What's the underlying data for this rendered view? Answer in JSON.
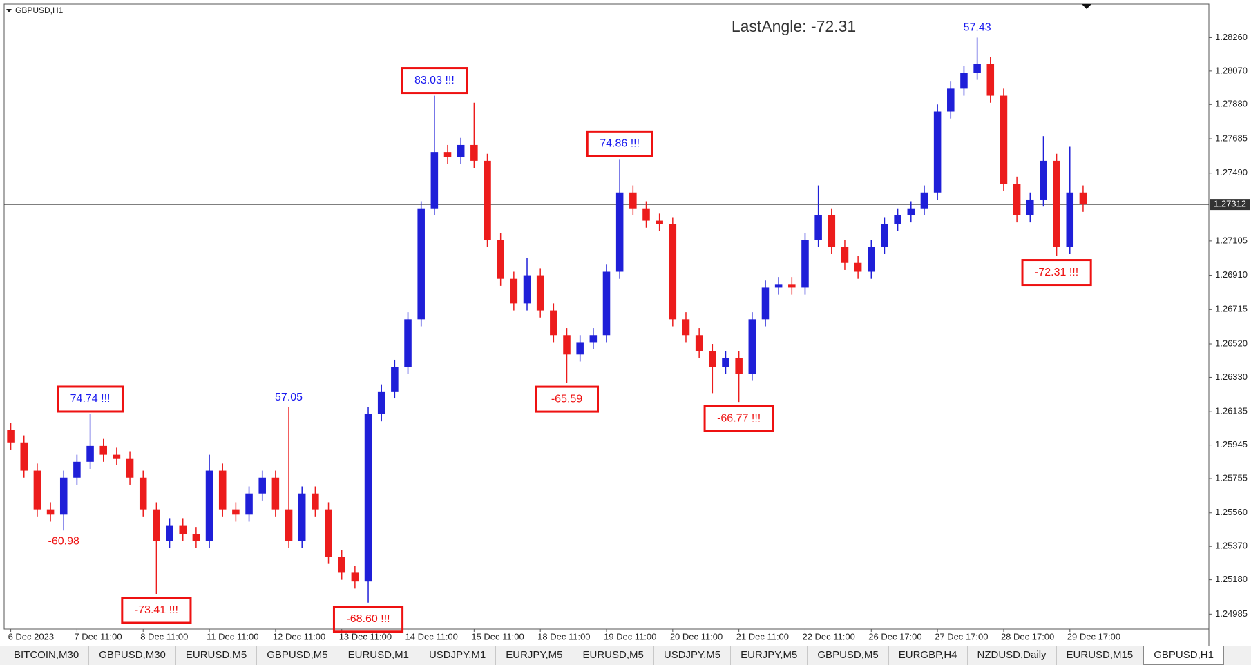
{
  "window": {
    "tabs": [
      "BITCOIN,M30",
      "GBPUSD,M30",
      "EURUSD,M5",
      "GBPUSD,M5",
      "EURUSD,M1",
      "USDJPY,M1",
      "EURJPY,M5",
      "EURUSD,M5",
      "USDJPY,M5",
      "EURJPY,M5",
      "GBPUSD,M5",
      "EURGBP,H4",
      "NZDUSD,Daily",
      "EURUSD,M15",
      "GBPUSD,H1"
    ],
    "active_tab": 14
  },
  "chart_data": {
    "type": "candlestick",
    "title": "GBPUSD,H1",
    "status_text": "LastAngle: -72.31",
    "up_color": "#1f1fd8",
    "down_color": "#ec1c1c",
    "grid": false,
    "categories": [
      "6 Dec 2023",
      null,
      null,
      null,
      null,
      "7 Dec 11:00",
      null,
      null,
      null,
      null,
      "8 Dec 11:00",
      null,
      null,
      null,
      null,
      "11 Dec 11:00",
      null,
      null,
      null,
      null,
      "12 Dec 11:00",
      null,
      null,
      null,
      null,
      "13 Dec 11:00",
      null,
      null,
      null,
      null,
      "14 Dec 11:00",
      null,
      null,
      null,
      null,
      "15 Dec 11:00",
      null,
      null,
      null,
      null,
      "18 Dec 11:00",
      null,
      null,
      null,
      null,
      "19 Dec 11:00",
      null,
      null,
      null,
      null,
      "20 Dec 11:00",
      null,
      null,
      null,
      null,
      "21 Dec 11:00",
      null,
      null,
      null,
      null,
      "22 Dec 11:00",
      null,
      null,
      null,
      null,
      "26 Dec 17:00",
      null,
      null,
      null,
      null,
      "27 Dec 17:00",
      null,
      null,
      null,
      null,
      "28 Dec 17:00",
      null,
      null,
      null,
      null,
      "29 Dec 17:00",
      null
    ],
    "open": [
      1.2603,
      1.2596,
      1.258,
      1.2558,
      1.2555,
      1.2576,
      1.2585,
      1.2594,
      1.2589,
      1.2587,
      1.2576,
      1.2558,
      1.254,
      1.2549,
      1.2544,
      1.254,
      1.258,
      1.2558,
      1.2555,
      1.2567,
      1.2576,
      1.2558,
      1.254,
      1.2567,
      1.2558,
      1.2531,
      1.2522,
      1.2517,
      1.2612,
      1.2625,
      1.2639,
      1.2666,
      1.2729,
      1.2761,
      1.2758,
      1.2765,
      1.2756,
      1.2711,
      1.2689,
      1.2675,
      1.2691,
      1.2671,
      1.2657,
      1.2646,
      1.2653,
      1.2657,
      1.2693,
      1.2738,
      1.2729,
      1.2722,
      1.272,
      1.2666,
      1.2657,
      1.2648,
      1.2639,
      1.2644,
      1.2635,
      1.2666,
      1.2684,
      1.2686,
      1.2684,
      1.2711,
      1.2725,
      1.2707,
      1.2698,
      1.2693,
      1.2707,
      1.272,
      1.2725,
      1.2729,
      1.2738,
      1.2784,
      1.2797,
      1.2806,
      1.2811,
      1.2793,
      1.2743,
      1.2725,
      1.2734,
      1.2756,
      1.2707,
      1.2738
    ],
    "high": [
      1.2607,
      1.26,
      1.2584,
      1.2562,
      1.258,
      1.2589,
      1.2612,
      1.2598,
      1.2593,
      1.2591,
      1.258,
      1.2562,
      1.2553,
      1.2553,
      1.2548,
      1.2589,
      1.2584,
      1.2562,
      1.2571,
      1.258,
      1.258,
      1.2616,
      1.2571,
      1.2571,
      1.2562,
      1.2535,
      1.2526,
      1.2616,
      1.2629,
      1.2643,
      1.267,
      1.2733,
      1.2793,
      1.2765,
      1.2769,
      1.2789,
      1.276,
      1.2715,
      1.2693,
      1.2701,
      1.2695,
      1.2675,
      1.2661,
      1.2657,
      1.2661,
      1.2697,
      1.2757,
      1.2742,
      1.2733,
      1.2726,
      1.2724,
      1.267,
      1.2661,
      1.2652,
      1.2648,
      1.2648,
      1.267,
      1.2688,
      1.269,
      1.269,
      1.2715,
      1.2742,
      1.2729,
      1.2711,
      1.2702,
      1.2711,
      1.2724,
      1.2729,
      1.2733,
      1.2742,
      1.2788,
      1.2801,
      1.281,
      1.2826,
      1.2815,
      1.2797,
      1.2747,
      1.2738,
      1.277,
      1.276,
      1.2764,
      1.2742
    ],
    "low": [
      1.2592,
      1.2576,
      1.2554,
      1.2551,
      1.2546,
      1.2572,
      1.2581,
      1.2585,
      1.2583,
      1.2572,
      1.2554,
      1.251,
      1.2536,
      1.254,
      1.2536,
      1.2536,
      1.2554,
      1.2551,
      1.2551,
      1.2563,
      1.2554,
      1.2536,
      1.2536,
      1.2554,
      1.2527,
      1.2518,
      1.2513,
      1.2505,
      1.2608,
      1.2621,
      1.2635,
      1.2662,
      1.2725,
      1.2754,
      1.2754,
      1.2752,
      1.2707,
      1.2685,
      1.2671,
      1.2671,
      1.2667,
      1.2653,
      1.263,
      1.2642,
      1.2649,
      1.2653,
      1.2689,
      1.2725,
      1.2718,
      1.2716,
      1.2662,
      1.2653,
      1.2644,
      1.2624,
      1.2635,
      1.2619,
      1.2631,
      1.2662,
      1.268,
      1.268,
      1.268,
      1.2707,
      1.2703,
      1.2694,
      1.2689,
      1.2689,
      1.2703,
      1.2716,
      1.2721,
      1.2725,
      1.2734,
      1.278,
      1.2793,
      1.2802,
      1.2789,
      1.2739,
      1.2721,
      1.2721,
      1.273,
      1.2702,
      1.2703,
      1.2727
    ],
    "close": [
      1.2596,
      1.258,
      1.2558,
      1.2555,
      1.2576,
      1.2585,
      1.2594,
      1.2589,
      1.2587,
      1.2576,
      1.2558,
      1.254,
      1.2549,
      1.2544,
      1.254,
      1.258,
      1.2558,
      1.2555,
      1.2567,
      1.2576,
      1.2558,
      1.254,
      1.2567,
      1.2558,
      1.2531,
      1.2522,
      1.2517,
      1.2612,
      1.2625,
      1.2639,
      1.2666,
      1.2729,
      1.2761,
      1.2758,
      1.2765,
      1.2756,
      1.2711,
      1.2689,
      1.2675,
      1.2691,
      1.2671,
      1.2657,
      1.2646,
      1.2653,
      1.2657,
      1.2693,
      1.2738,
      1.2729,
      1.2722,
      1.272,
      1.2666,
      1.2657,
      1.2648,
      1.2639,
      1.2644,
      1.2635,
      1.2666,
      1.2684,
      1.2686,
      1.2684,
      1.2711,
      1.2725,
      1.2707,
      1.2698,
      1.2693,
      1.2707,
      1.272,
      1.2725,
      1.2729,
      1.2738,
      1.2784,
      1.2797,
      1.2806,
      1.2811,
      1.2793,
      1.2743,
      1.2725,
      1.2734,
      1.2756,
      1.2707,
      1.2738,
      1.27312
    ],
    "last_price": 1.27312,
    "ylim": [
      1.249,
      1.2845
    ],
    "yticks": [
      {
        "value": 1.2826,
        "label": "1.28260"
      },
      {
        "value": 1.2807,
        "label": "1.28070"
      },
      {
        "value": 1.2788,
        "label": "1.27880"
      },
      1.27685,
      {
        "value": 1.2749,
        "label": "1.27490"
      },
      1.27105,
      {
        "value": 1.2691,
        "label": "1.26910"
      },
      1.26715,
      {
        "value": 1.2652,
        "label": "1.26520"
      },
      {
        "value": 1.2633,
        "label": "1.26330"
      },
      1.26135,
      1.25945,
      1.25755,
      {
        "value": 1.2556,
        "label": "1.25560"
      },
      {
        "value": 1.2537,
        "label": "1.25370"
      },
      {
        "value": 1.2518,
        "label": "1.25180"
      },
      1.24985
    ],
    "annotations": [
      {
        "text": "-60.98",
        "at": 4,
        "side": "low",
        "boxed": false,
        "color": "#ee1111"
      },
      {
        "text": "74.74 !!!",
        "at": 6,
        "side": "high",
        "boxed": true,
        "color": "#1a1af0"
      },
      {
        "text": "-73.41 !!!",
        "at": 11,
        "side": "low",
        "boxed": true,
        "color": "#ee1111"
      },
      {
        "text": "57.05",
        "at": 21,
        "side": "high",
        "boxed": false,
        "color": "#1a1af0"
      },
      {
        "text": "-68.60 !!!",
        "at": 27,
        "side": "low",
        "boxed": true,
        "color": "#ee1111"
      },
      {
        "text": "83.03 !!!",
        "at": 32,
        "side": "high",
        "boxed": true,
        "color": "#1a1af0"
      },
      {
        "text": "-65.59",
        "at": 42,
        "side": "low",
        "boxed": true,
        "color": "#ee1111"
      },
      {
        "text": "74.86 !!!",
        "at": 46,
        "side": "high",
        "boxed": true,
        "color": "#1a1af0"
      },
      {
        "text": "-66.77 !!!",
        "at": 55,
        "side": "low",
        "boxed": true,
        "color": "#ee1111"
      },
      {
        "text": "57.43",
        "at": 73,
        "side": "high",
        "boxed": false,
        "color": "#1a1af0"
      },
      {
        "text": "-72.31 !!!",
        "at": 79,
        "side": "low",
        "boxed": true,
        "color": "#ee1111"
      }
    ]
  }
}
